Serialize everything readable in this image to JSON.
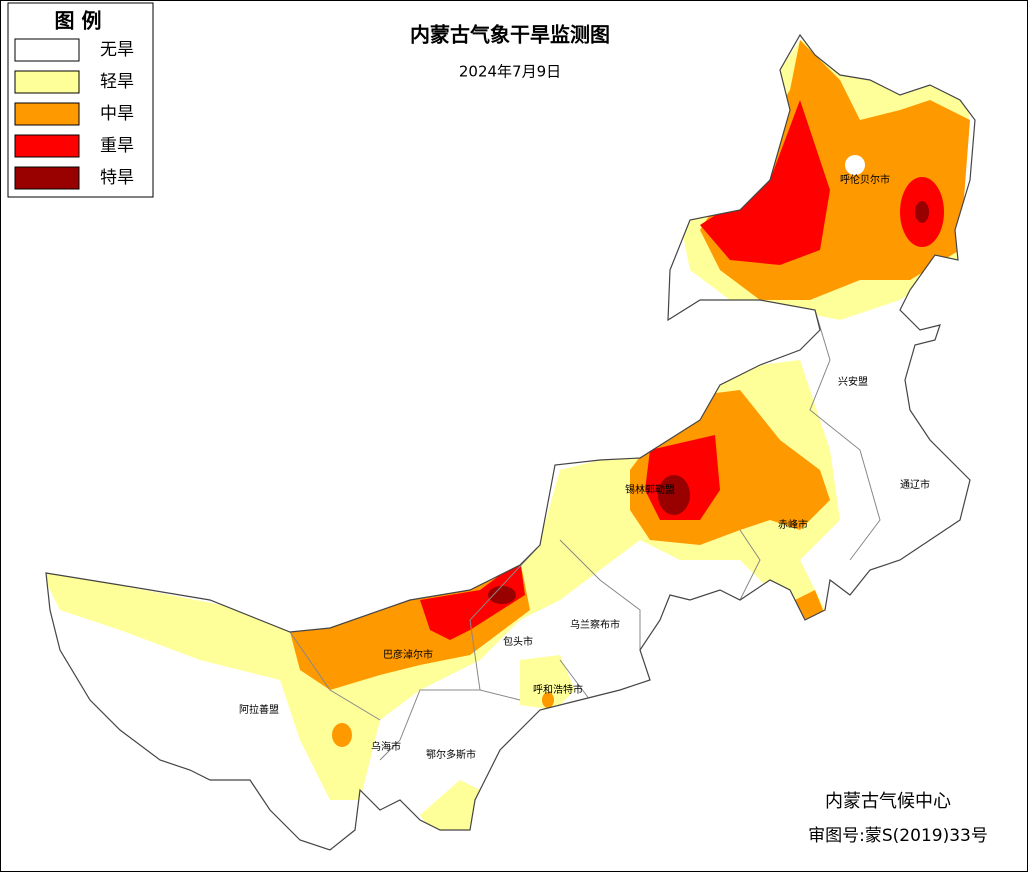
{
  "legend": {
    "title": "图 例",
    "items": [
      {
        "label": "无旱",
        "color": "#ffffff"
      },
      {
        "label": "轻旱",
        "color": "#ffff99"
      },
      {
        "label": "中旱",
        "color": "#ff9900"
      },
      {
        "label": "重旱",
        "color": "#ff0000"
      },
      {
        "label": "特旱",
        "color": "#990000"
      }
    ]
  },
  "header": {
    "title": "内蒙古气象干旱监测图",
    "date": "2024年7月9日"
  },
  "places": [
    {
      "label": "呼伦贝尔市"
    },
    {
      "label": "兴安盟"
    },
    {
      "label": "通辽市"
    },
    {
      "label": "锡林郭勒盟"
    },
    {
      "label": "赤峰市"
    },
    {
      "label": "乌兰察布市"
    },
    {
      "label": "包头市"
    },
    {
      "label": "巴彦淖尔市"
    },
    {
      "label": "呼和浩特市"
    },
    {
      "label": "阿拉善盟"
    },
    {
      "label": "乌海市"
    },
    {
      "label": "鄂尔多斯市"
    }
  ],
  "footer": {
    "issuer": "内蒙古气候中心",
    "approval": "审图号:蒙S(2019)33号"
  }
}
